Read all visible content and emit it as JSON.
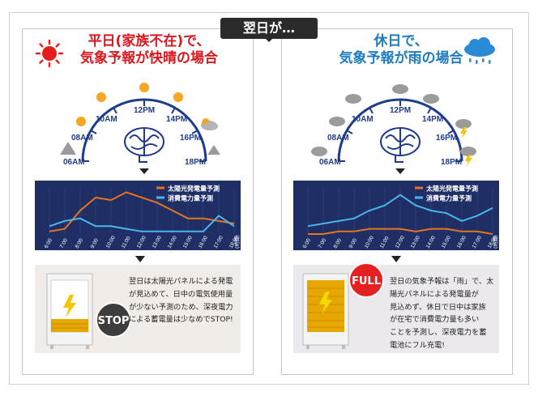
{
  "header": {
    "tag": "翌日が…"
  },
  "left": {
    "title_line1": "平日(家族不在)で、",
    "title_line2": "気象予報が快晴の場合",
    "clock_labels": [
      "06AM",
      "08AM",
      "10AM",
      "12PM",
      "14PM",
      "16PM",
      "18PM"
    ],
    "description": "翌日は太陽光パネルによる発電\nが見込めて、日中の電気使用量\nが少ない予測のため、深夜電力\nによる蓄電量は少なめでSTOP!",
    "badge": "STOP"
  },
  "right": {
    "title_line1": "休日で、",
    "title_line2": "気象予報が雨の場合",
    "clock_labels": [
      "06AM",
      "08AM",
      "10AM",
      "12PM",
      "14PM",
      "16PM",
      "18PM"
    ],
    "description": "翌日の気象予報は「雨」で、太\n陽光パネルによる発電量が\n見込めず、休日で日中は家族\nが在宅で消費電力量も多い\nことを予測し、深夜電力を蓄\n電池にフル充電!",
    "badge": "FULL"
  },
  "chart_data": [
    {
      "type": "line",
      "x": [
        "6:00",
        "7:00",
        "8:00",
        "9:00",
        "10:00",
        "11:00",
        "12:00",
        "13:00",
        "14:00",
        "15:00",
        "16:00",
        "17:00",
        "18:00"
      ],
      "xlabel": "(時間)",
      "series": [
        {
          "name": "太陽光発電量予測",
          "values": [
            1,
            2,
            9,
            14,
            13,
            16,
            14,
            12,
            9,
            6,
            6,
            5,
            4
          ]
        },
        {
          "name": "消費電力量予測",
          "values": [
            3,
            5,
            6,
            3,
            3,
            2,
            1,
            1,
            1,
            1,
            1,
            7,
            3
          ]
        }
      ],
      "colors": {
        "solar": "#e8741c",
        "consumption": "#4ab5ea",
        "background": "#1f2f66"
      }
    },
    {
      "type": "line",
      "x": [
        "6:00",
        "7:00",
        "8:00",
        "9:00",
        "10:00",
        "11:00",
        "12:00",
        "13:00",
        "14:00",
        "15:00",
        "16:00",
        "17:00",
        "18:00"
      ],
      "xlabel": "(時間)",
      "series": [
        {
          "name": "太陽光発電量予測",
          "values": [
            0,
            0,
            1,
            1,
            2,
            2,
            2,
            1,
            2,
            2,
            1,
            1,
            0
          ]
        },
        {
          "name": "消費電力量予測",
          "values": [
            3,
            4,
            5,
            6,
            9,
            11,
            15,
            11,
            9,
            8,
            5,
            7,
            10
          ]
        }
      ],
      "colors": {
        "solar": "#e8741c",
        "consumption": "#4ab5ea",
        "background": "#1f2f66"
      }
    }
  ]
}
